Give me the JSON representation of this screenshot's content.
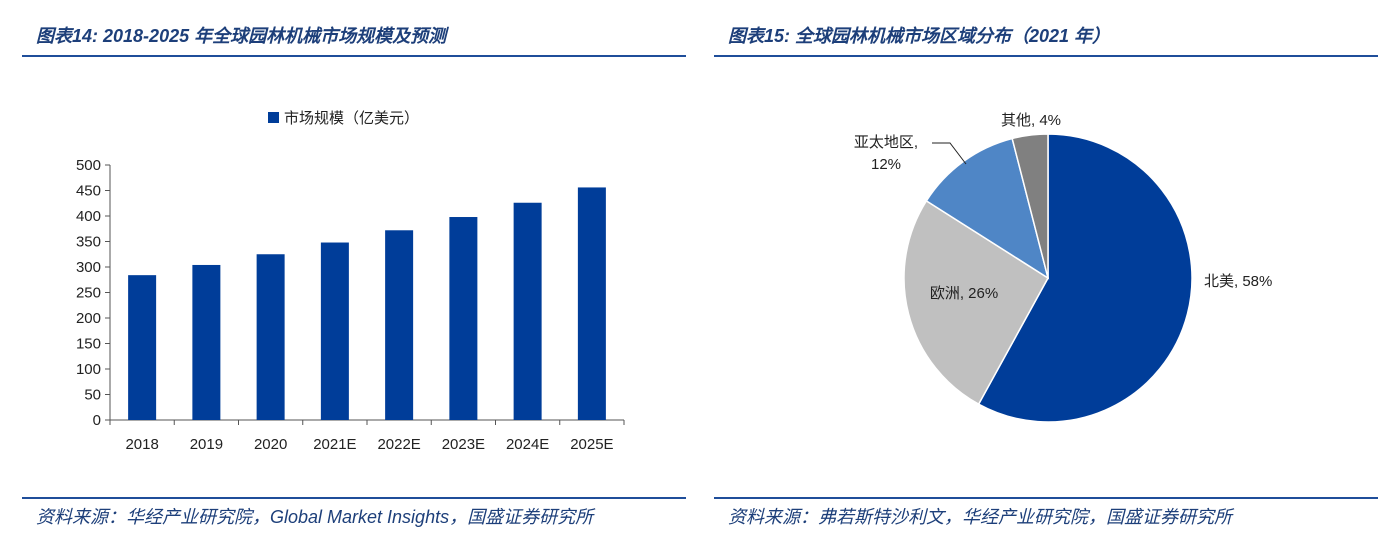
{
  "left_panel": {
    "title": "图表14:  2018-2025 年全球园林机械市场规模及预测",
    "source": "资料来源：华经产业研究院，Global Market Insights，国盛证券研究所"
  },
  "right_panel": {
    "title": "图表15:  全球园林机械市场区域分布（2021 年）",
    "source": "资料来源：弗若斯特沙利文，华经产业研究院，国盛证券研究所"
  },
  "chart_data": [
    {
      "type": "bar",
      "legend": "市场规模（亿美元）",
      "legend_position": "top",
      "categories": [
        "2018",
        "2019",
        "2020",
        "2021E",
        "2022E",
        "2023E",
        "2024E",
        "2025E"
      ],
      "series": [
        {
          "name": "市场规模（亿美元）",
          "values": [
            284,
            304,
            325,
            348,
            372,
            398,
            426,
            456
          ],
          "color": "#003d99"
        }
      ],
      "ylim": [
        0,
        500
      ],
      "yticks": [
        "0",
        "50",
        "100",
        "150",
        "200",
        "250",
        "300",
        "350",
        "400",
        "450",
        "500"
      ],
      "grid": false
    },
    {
      "type": "pie",
      "slices": [
        {
          "label": "北美",
          "value": 58,
          "text": "58%",
          "color": "#003d99"
        },
        {
          "label": "欧洲",
          "value": 26,
          "text": "26%",
          "color": "#c0c0c0"
        },
        {
          "label": "亚太地区",
          "value": 12,
          "text": "12%",
          "color": "#4f86c6"
        },
        {
          "label": "其他",
          "value": 4,
          "text": "4%",
          "color": "#808080"
        }
      ]
    }
  ]
}
